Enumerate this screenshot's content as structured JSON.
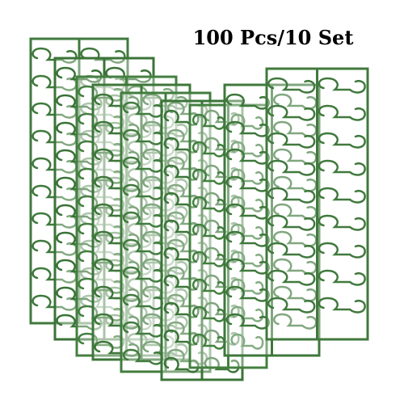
{
  "caption": "100 Pcs/10 Set"
}
